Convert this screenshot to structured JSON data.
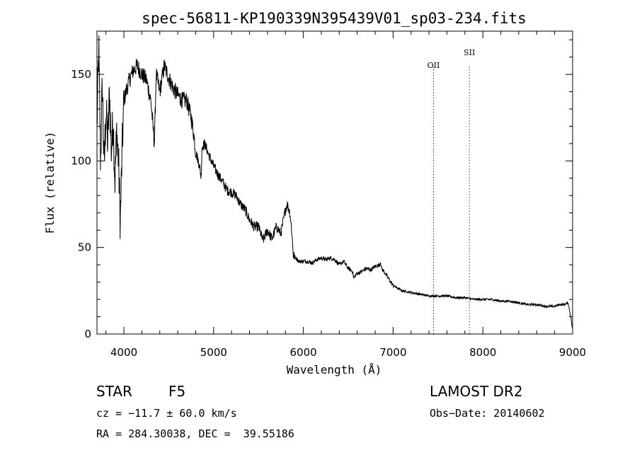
{
  "chart_data": {
    "type": "line",
    "title": "spec-56811-KP190339N395439V01_sp03-234.fits",
    "xlabel": "Wavelength (Å)",
    "ylabel": "Flux (relative)",
    "xlim": [
      3700,
      9000
    ],
    "ylim": [
      0,
      175
    ],
    "xticks": [
      4000,
      5000,
      6000,
      7000,
      8000,
      9000
    ],
    "yticks": [
      0,
      50,
      100,
      150
    ],
    "grid": false,
    "series": [
      {
        "x": [
          3700,
          3720,
          3740,
          3760,
          3780,
          3800,
          3820,
          3840,
          3860,
          3880,
          3900,
          3920,
          3940,
          3960,
          3980,
          4000,
          4050,
          4100,
          4150,
          4200,
          4250,
          4300,
          4340,
          4360,
          4400,
          4450,
          4500,
          4550,
          4600,
          4650,
          4700,
          4750,
          4780,
          4800,
          4830,
          4850,
          4861,
          4870,
          4900,
          4950,
          5000,
          5050,
          5100,
          5150,
          5200,
          5250,
          5300,
          5350,
          5400,
          5450,
          5500,
          5550,
          5600,
          5650,
          5700,
          5750,
          5800,
          5820,
          5850,
          5870,
          5880,
          5890,
          5900,
          5950,
          6000,
          6050,
          6100,
          6150,
          6200,
          6250,
          6300,
          6350,
          6400,
          6450,
          6500,
          6550,
          6563,
          6580,
          6600,
          6650,
          6700,
          6750,
          6800,
          6850,
          6860,
          6870,
          6900,
          6950,
          7000,
          7100,
          7200,
          7300,
          7400,
          7500,
          7600,
          7700,
          7800,
          7900,
          8000,
          8100,
          8200,
          8300,
          8400,
          8500,
          8600,
          8700,
          8800,
          8850,
          8900,
          8950,
          8980,
          9000
        ],
        "y": [
          120,
          165,
          100,
          145,
          95,
          130,
          110,
          140,
          105,
          125,
          88,
          118,
          100,
          65,
          105,
          135,
          145,
          152,
          155,
          150,
          147,
          135,
          110,
          150,
          140,
          155,
          148,
          142,
          138,
          135,
          135,
          125,
          115,
          105,
          100,
          95,
          90,
          108,
          110,
          103,
          97,
          92,
          88,
          83,
          82,
          80,
          75,
          72,
          66,
          62,
          62,
          54,
          60,
          55,
          62,
          58,
          72,
          75,
          70,
          60,
          52,
          45,
          45,
          42,
          42,
          42,
          41,
          43,
          44,
          43,
          44,
          43,
          40,
          42,
          38,
          36,
          32,
          34,
          35,
          36,
          38,
          37,
          39,
          40,
          42,
          38,
          36,
          32,
          28,
          25,
          24,
          23,
          22,
          22,
          22,
          21,
          21,
          20,
          20,
          20,
          19,
          19,
          18,
          17,
          17,
          16,
          16,
          17,
          17,
          18,
          10,
          2
        ]
      }
    ],
    "annotations": [
      {
        "label": "OII",
        "x": 7450
      },
      {
        "label": "SII",
        "x": 7850
      }
    ]
  },
  "info": {
    "object_class": "STAR",
    "subclass": "F5",
    "survey": "LAMOST DR2",
    "cz": "cz = −11.7 ± 60.0 km/s",
    "obs_date": "Obs−Date: 20140602",
    "coords": "RA = 284.30038, DEC =  39.55186"
  }
}
